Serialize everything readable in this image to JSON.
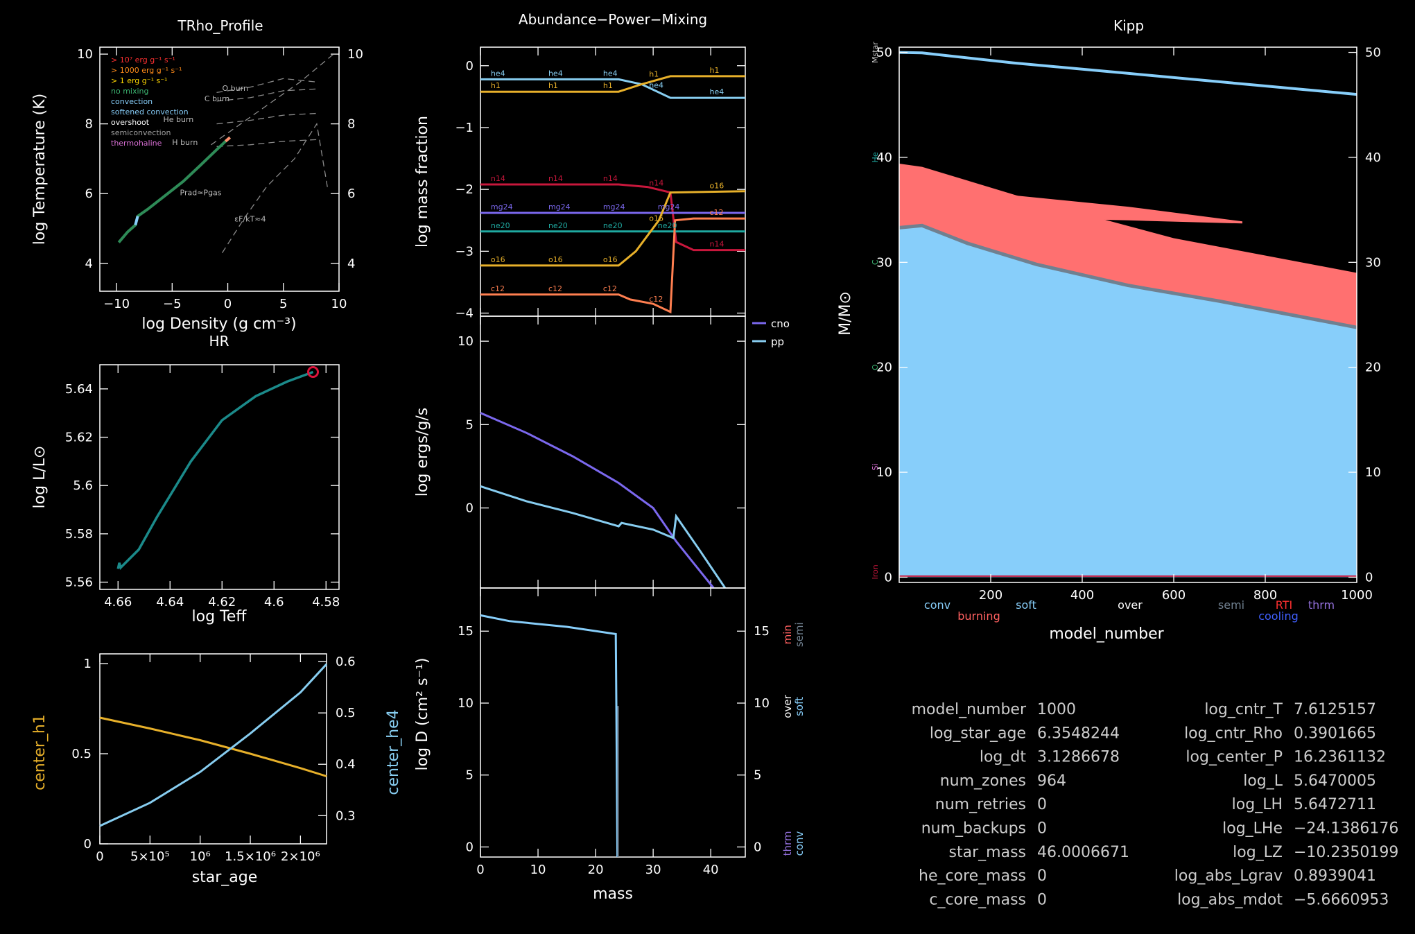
{
  "window": {
    "width": 2041,
    "height": 1347
  },
  "colors": {
    "background": "#000000",
    "axis": "#ffffff",
    "h1": "#e7b02a",
    "he4": "#87cdf0",
    "n14": "#c8173c",
    "mg24": "#7b68ee",
    "ne20": "#1fa9a0",
    "o16": "#e7b02a",
    "c12": "#ff7f50",
    "cno": "#7b68ee",
    "pp": "#87cdf0",
    "hr_track": "#1b8a8a",
    "hr_marker": "#dc143c",
    "convection": "#87cefa",
    "burning": "#ff7070",
    "overshoot": "#708090"
  },
  "panels": {
    "trho": {
      "title": "TRho_Profile",
      "xlabel": "log Density (g cm⁻³)",
      "ylabel": "log Temperature (K)",
      "xticks": [
        "−10",
        "−5",
        "0",
        "5",
        "10"
      ],
      "yticks": [
        "4",
        "6",
        "8",
        "10"
      ],
      "legend": [
        {
          "text": "> 10⁷ erg g⁻¹ s⁻¹",
          "color": "#ff3030"
        },
        {
          "text": "> 1000 erg g⁻¹ s⁻¹",
          "color": "#ff8c1a"
        },
        {
          "text": "> 1 erg g⁻¹ s⁻¹",
          "color": "#ffd700"
        },
        {
          "text": "no mixing",
          "color": "#3cb371"
        },
        {
          "text": "convection",
          "color": "#87cefa"
        },
        {
          "text": "softened convection",
          "color": "#87cefa"
        },
        {
          "text": "overshoot",
          "color": "#ffffff"
        },
        {
          "text": "semiconvection",
          "color": "#a0a0a0"
        },
        {
          "text": "thermohaline",
          "color": "#da70d6"
        }
      ],
      "burn_labels": [
        "O burn",
        "C burn",
        "He burn",
        "H burn"
      ],
      "prad_label": "Prad≈Pgas",
      "eps_label": "εF/kT≈4"
    },
    "hr": {
      "title": "HR",
      "xlabel": "log Teff",
      "ylabel": "log L/L⊙",
      "xticks": [
        "4.66",
        "4.64",
        "4.62",
        "4.6",
        "4.58"
      ],
      "yticks": [
        "5.56",
        "5.58",
        "5.6",
        "5.62",
        "5.64"
      ]
    },
    "center": {
      "xlabel": "star_age",
      "ylabel_left": "center_h1",
      "ylabel_right": "center_he4",
      "xticks": [
        "0",
        "5×10⁵",
        "10⁶",
        "1.5×10⁶",
        "2×10⁶"
      ],
      "yticks_left": [
        "0",
        "0.5",
        "1"
      ],
      "yticks_right": [
        "0.3",
        "0.4",
        "0.5",
        "0.6"
      ]
    },
    "abund": {
      "title": "Abundance−Power−Mixing",
      "ylabel": "log mass fraction",
      "yticks": [
        "0",
        "−1",
        "−2",
        "−3",
        "−4"
      ],
      "species_labels": {
        "he4": "he4",
        "h1": "h1",
        "n14": "n14",
        "mg24": "mg24",
        "ne20": "ne20",
        "o16": "o16",
        "c12": "c12"
      }
    },
    "power": {
      "ylabel": "log ergs/g/s",
      "yticks": [
        "0",
        "5",
        "10"
      ],
      "legend": [
        {
          "text": "cno",
          "color": "#7b68ee"
        },
        {
          "text": "pp",
          "color": "#87cdf0"
        }
      ]
    },
    "mixing": {
      "ylabel": "log D (cm² s⁻¹)",
      "xlabel": "mass",
      "xticks": [
        "0",
        "10",
        "20",
        "30",
        "40"
      ],
      "yticks": [
        "0",
        "5",
        "10",
        "15"
      ],
      "right_labels": [
        {
          "a": "min",
          "b": "semi",
          "ca": "#ff6060",
          "cb": "#708090"
        },
        {
          "a": "over",
          "b": "soft",
          "ca": "#ffffff",
          "cb": "#87cefa"
        },
        {
          "a": "thrm",
          "b": "conv",
          "ca": "#9370db",
          "cb": "#87cefa"
        }
      ]
    },
    "kipp": {
      "title": "Kipp",
      "xlabel": "model_number",
      "ylabel": "M/M⊙",
      "xticks": [
        "200",
        "400",
        "600",
        "800",
        "1000"
      ],
      "yticks": [
        "0",
        "10",
        "20",
        "30",
        "40",
        "50"
      ],
      "left_markers": [
        {
          "text": "Mstar",
          "color": "#cccccc"
        },
        {
          "text": "He",
          "color": "#1fa9a0"
        },
        {
          "text": "C",
          "color": "#3cb371"
        },
        {
          "text": "O",
          "color": "#3cb371"
        },
        {
          "text": "Si",
          "color": "#da70d6"
        },
        {
          "text": "Iron",
          "color": "#c8173c"
        }
      ],
      "bottom_labels": [
        {
          "text": "conv",
          "color": "#87cefa"
        },
        {
          "text": "burning",
          "color": "#ff6060"
        },
        {
          "text": "soft",
          "color": "#87cefa"
        },
        {
          "text": "over",
          "color": "#ffffff"
        },
        {
          "text": "semi",
          "color": "#708090"
        },
        {
          "text": "RTI",
          "color": "#ff3030"
        },
        {
          "text": "cooling",
          "color": "#4060ff"
        },
        {
          "text": "thrm",
          "color": "#9370db"
        }
      ]
    }
  },
  "info_left": [
    {
      "label": "model_number",
      "value": "1000"
    },
    {
      "label": "log_star_age",
      "value": "6.3548244"
    },
    {
      "label": "log_dt",
      "value": "3.1286678"
    },
    {
      "label": "num_zones",
      "value": "964"
    },
    {
      "label": "num_retries",
      "value": "0"
    },
    {
      "label": "num_backups",
      "value": "0"
    },
    {
      "label": "star_mass",
      "value": "46.0006671"
    },
    {
      "label": "he_core_mass",
      "value": "0"
    },
    {
      "label": "c_core_mass",
      "value": "0"
    }
  ],
  "info_right": [
    {
      "label": "log_cntr_T",
      "value": "7.6125157"
    },
    {
      "label": "log_cntr_Rho",
      "value": "0.3901665"
    },
    {
      "label": "log_center_P",
      "value": "16.2361132"
    },
    {
      "label": "log_L",
      "value": "5.6470005"
    },
    {
      "label": "log_LH",
      "value": "5.6472711"
    },
    {
      "label": "log_LHe",
      "value": "−24.1386176"
    },
    {
      "label": "log_LZ",
      "value": "−10.2350199"
    },
    {
      "label": "log_abs_Lgrav",
      "value": "0.8939041"
    },
    {
      "label": "log_abs_mdot",
      "value": "−5.6660953"
    }
  ],
  "chart_data": [
    {
      "type": "line",
      "id": "trho",
      "title": "TRho_Profile",
      "xlabel": "log Density (g cm⁻³)",
      "ylabel": "log Temperature (K)",
      "xlim": [
        -11.5,
        10
      ],
      "ylim": [
        3.2,
        10.2
      ],
      "series": [
        {
          "x": [
            -9.8,
            -9.0,
            -8.3,
            -8.1,
            -7.2,
            -5.8,
            -4.0,
            -2.5,
            -1.2,
            -0.2,
            0.2
          ],
          "y": [
            4.6,
            4.9,
            5.1,
            5.35,
            5.55,
            5.9,
            6.35,
            6.8,
            7.2,
            7.5,
            7.61
          ]
        }
      ],
      "burn_lines": [
        {
          "name": "O burn",
          "x": [
            -1,
            2,
            5,
            8
          ],
          "y": [
            8.9,
            9.05,
            9.3,
            9.2
          ]
        },
        {
          "name": "C burn",
          "x": [
            -1,
            2,
            5,
            8
          ],
          "y": [
            8.65,
            8.75,
            8.95,
            9.0
          ]
        },
        {
          "name": "He burn",
          "x": [
            -1,
            2,
            5,
            8
          ],
          "y": [
            8.0,
            8.1,
            8.25,
            8.3
          ]
        },
        {
          "name": "H burn",
          "x": [
            -1,
            2,
            5,
            8
          ],
          "y": [
            7.35,
            7.4,
            7.5,
            7.55
          ]
        }
      ],
      "boundaries": [
        {
          "x": [
            -1.5,
            2.5,
            6.5,
            9.5
          ],
          "y": [
            7.4,
            8.3,
            9.2,
            10.0
          ]
        },
        {
          "x": [
            -0.5,
            1.5,
            3.5,
            6.0,
            8.0,
            9.0
          ],
          "y": [
            4.3,
            5.3,
            6.2,
            7.0,
            8.0,
            6.1
          ]
        }
      ]
    },
    {
      "type": "line",
      "id": "hr",
      "title": "HR",
      "xlabel": "log Teff",
      "ylabel": "log L/L⊙",
      "xlim": [
        4.667,
        4.575
      ],
      "ylim": [
        5.557,
        5.65
      ],
      "series": [
        {
          "x": [
            4.66,
            4.6595,
            4.659,
            4.652,
            4.645,
            4.632,
            4.62,
            4.607,
            4.595,
            4.585
          ],
          "y": [
            5.5655,
            5.568,
            5.566,
            5.5735,
            5.587,
            5.61,
            5.627,
            5.637,
            5.643,
            5.647
          ]
        }
      ],
      "marker": {
        "x": 4.585,
        "y": 5.647
      }
    },
    {
      "type": "line",
      "id": "center",
      "xlabel": "star_age",
      "ylabel": "center_h1",
      "xlim": [
        0,
        2260000.0
      ],
      "ylim_left": [
        0,
        1.0
      ],
      "ylim_right": [
        0.245,
        0.615
      ],
      "series": [
        {
          "name": "center_h1",
          "axis": "left",
          "x": [
            0,
            500000.0,
            1000000.0,
            1500000.0,
            2000000.0,
            2260000.0
          ],
          "y": [
            0.7,
            0.64,
            0.575,
            0.5,
            0.42,
            0.375
          ]
        },
        {
          "name": "center_he4",
          "axis": "right",
          "x": [
            0,
            500000.0,
            1000000.0,
            1500000.0,
            2000000.0,
            2260000.0
          ],
          "y": [
            0.28,
            0.325,
            0.385,
            0.46,
            0.54,
            0.595
          ]
        }
      ]
    },
    {
      "type": "line",
      "id": "abund",
      "ylabel": "log mass fraction",
      "xlim": [
        0,
        46
      ],
      "ylim": [
        -4.05,
        0.3
      ],
      "series": [
        {
          "name": "he4",
          "x": [
            0,
            24,
            28,
            33,
            46
          ],
          "y": [
            -0.22,
            -0.22,
            -0.3,
            -0.52,
            -0.52
          ]
        },
        {
          "name": "h1",
          "x": [
            0,
            24,
            28,
            33,
            46
          ],
          "y": [
            -0.42,
            -0.42,
            -0.3,
            -0.17,
            -0.17
          ]
        },
        {
          "name": "n14",
          "x": [
            0,
            24,
            29,
            33,
            34,
            37,
            46
          ],
          "y": [
            -1.92,
            -1.92,
            -1.96,
            -2.05,
            -2.85,
            -2.98,
            -2.98
          ]
        },
        {
          "name": "mg24",
          "x": [
            0,
            46
          ],
          "y": [
            -2.38,
            -2.38
          ]
        },
        {
          "name": "ne20",
          "x": [
            0,
            46
          ],
          "y": [
            -2.68,
            -2.68
          ]
        },
        {
          "name": "o16",
          "x": [
            0,
            24,
            27,
            31,
            33,
            46
          ],
          "y": [
            -3.23,
            -3.23,
            -3.0,
            -2.5,
            -2.05,
            -2.03
          ]
        },
        {
          "name": "c12",
          "x": [
            0,
            24,
            26,
            30,
            33,
            33.8,
            37,
            46
          ],
          "y": [
            -3.7,
            -3.7,
            -3.78,
            -3.85,
            -3.98,
            -2.5,
            -2.47,
            -2.47
          ]
        }
      ]
    },
    {
      "type": "line",
      "id": "power",
      "ylabel": "log ergs/g/s",
      "xlim": [
        0,
        46
      ],
      "ylim": [
        -4.8,
        11.5
      ],
      "series": [
        {
          "name": "cno",
          "x": [
            0,
            8,
            16,
            24,
            30,
            34,
            37,
            40.5
          ],
          "y": [
            5.7,
            4.5,
            3.1,
            1.5,
            0.0,
            -2.0,
            -3.3,
            -4.8
          ]
        },
        {
          "name": "pp",
          "x": [
            0,
            8,
            16,
            24,
            24.5,
            30,
            33.5,
            34,
            38,
            42.5
          ],
          "y": [
            1.3,
            0.4,
            -0.3,
            -1.1,
            -0.9,
            -1.3,
            -1.8,
            -0.5,
            -2.5,
            -4.8
          ]
        }
      ]
    },
    {
      "type": "line",
      "id": "mixing",
      "ylabel": "log D (cm² s⁻¹)",
      "xlabel": "mass",
      "xlim": [
        0,
        46
      ],
      "ylim": [
        -0.7,
        18
      ],
      "series": [
        {
          "name": "conv",
          "x": [
            0,
            5,
            15,
            23.5,
            23.6,
            23.8
          ],
          "y": [
            16.1,
            15.7,
            15.3,
            14.8,
            10,
            -0.7
          ]
        }
      ]
    },
    {
      "type": "area",
      "id": "kipp",
      "title": "Kipp",
      "xlabel": "model_number",
      "ylabel": "M/M⊙",
      "xlim": [
        0,
        1000
      ],
      "ylim": [
        -0.5,
        50.5
      ],
      "series": [
        {
          "name": "star_mass",
          "x": [
            0,
            50,
            250,
            500,
            750,
            1000
          ],
          "y": [
            50,
            49.95,
            49.0,
            48.0,
            47.0,
            46.0
          ]
        },
        {
          "name": "convective_core",
          "x": [
            0,
            50,
            150,
            300,
            500,
            700,
            1000
          ],
          "y": [
            33.3,
            33.5,
            31.8,
            29.8,
            27.8,
            26.3,
            23.8
          ]
        },
        {
          "name": "burning_upper",
          "x": [
            0,
            50,
            300,
            600,
            1000
          ],
          "y": [
            39.4,
            39.1,
            35.8,
            32.3,
            29.0
          ]
        },
        {
          "name": "burning_shell_upper",
          "x": [
            0,
            200,
            500,
            750
          ],
          "y": [
            37.5,
            36.6,
            35.3,
            33.9
          ]
        },
        {
          "name": "burning_shell_lower",
          "x": [
            0,
            200,
            500,
            750
          ],
          "y": [
            34.5,
            34.3,
            34.0,
            33.7
          ]
        }
      ]
    }
  ]
}
